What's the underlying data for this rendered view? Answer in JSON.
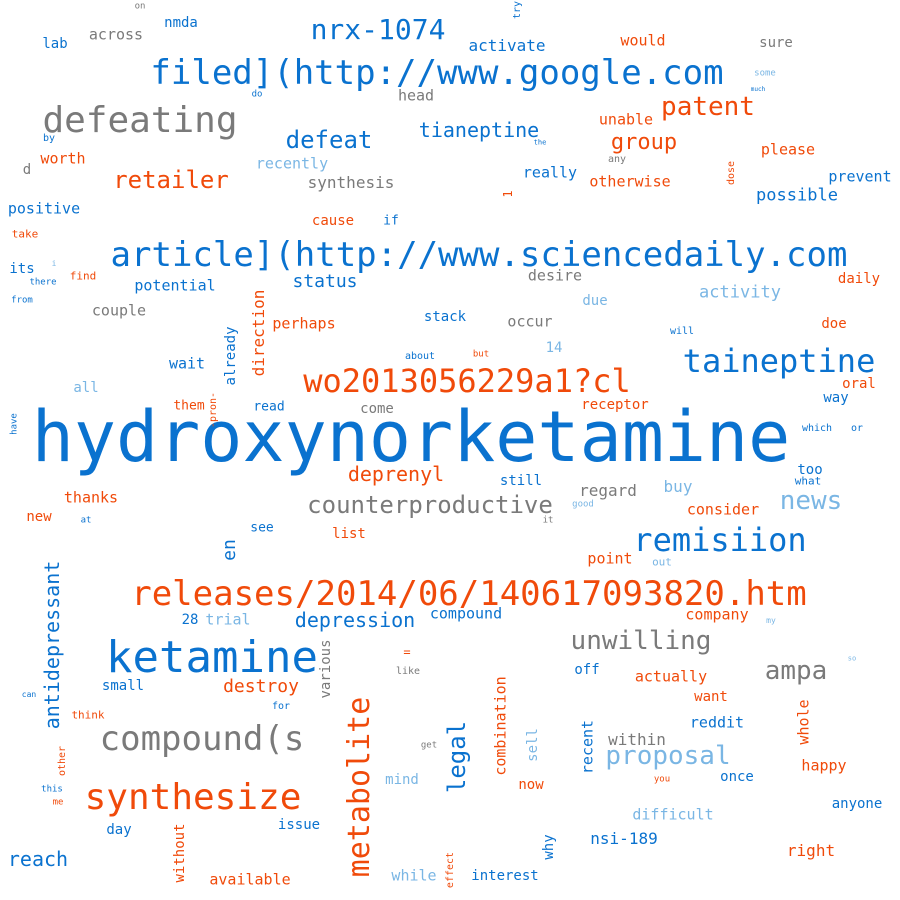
{
  "palette": {
    "blue": "#0a72cf",
    "orange": "#f04a0a",
    "gray": "#7a7a7a",
    "lightblue": "#7ab6e4"
  },
  "words": [
    {
      "text": "hydroxynorketamine",
      "color": "blue"
    },
    {
      "text": "article](http://www.sciencedaily.com",
      "color": "blue"
    },
    {
      "text": "filed](http://www.google.com",
      "color": "blue"
    },
    {
      "text": "releases/2014/06/140617093820.htm",
      "color": "orange"
    },
    {
      "text": "ketamine",
      "color": "blue"
    },
    {
      "text": "wo2013056229a1?cl",
      "color": "orange"
    },
    {
      "text": "defeating",
      "color": "gray"
    },
    {
      "text": "synthesize",
      "color": "orange"
    },
    {
      "text": "compound(s",
      "color": "gray"
    },
    {
      "text": "taineptine",
      "color": "blue"
    },
    {
      "text": "remisiion",
      "color": "blue"
    },
    {
      "text": "metabolite",
      "color": "orange"
    },
    {
      "text": "nrx-1074",
      "color": "blue"
    },
    {
      "text": "counterproductive",
      "color": "gray"
    },
    {
      "text": "proposal",
      "color": "lightblue"
    },
    {
      "text": "unwilling",
      "color": "gray"
    },
    {
      "text": "patent",
      "color": "orange"
    },
    {
      "text": "defeat",
      "color": "blue"
    },
    {
      "text": "retailer",
      "color": "orange"
    },
    {
      "text": "ampa",
      "color": "gray"
    },
    {
      "text": "news",
      "color": "lightblue"
    },
    {
      "text": "group",
      "color": "orange"
    },
    {
      "text": "legal",
      "color": "blue"
    },
    {
      "text": "antidepressant",
      "color": "blue"
    },
    {
      "text": "depression",
      "color": "blue"
    },
    {
      "text": "tianeptine",
      "color": "blue"
    },
    {
      "text": "deprenyl",
      "color": "orange"
    },
    {
      "text": "reach",
      "color": "blue"
    },
    {
      "text": "destroy",
      "color": "orange"
    },
    {
      "text": "status",
      "color": "blue"
    },
    {
      "text": "synthesis",
      "color": "gray"
    },
    {
      "text": "en",
      "color": "blue"
    },
    {
      "text": "activity",
      "color": "lightblue"
    },
    {
      "text": "possible",
      "color": "blue"
    },
    {
      "text": "direction",
      "color": "orange"
    },
    {
      "text": "regard",
      "color": "gray"
    },
    {
      "text": "potential",
      "color": "blue"
    },
    {
      "text": "activate",
      "color": "blue"
    },
    {
      "text": "perhaps",
      "color": "orange"
    },
    {
      "text": "recently",
      "color": "lightblue"
    },
    {
      "text": "couple",
      "color": "gray"
    },
    {
      "text": "across",
      "color": "gray"
    },
    {
      "text": "otherwise",
      "color": "orange"
    },
    {
      "text": "prevent",
      "color": "blue"
    },
    {
      "text": "really",
      "color": "blue"
    },
    {
      "text": "within",
      "color": "gray"
    },
    {
      "text": "nsi-189",
      "color": "blue"
    },
    {
      "text": "combination",
      "color": "orange"
    },
    {
      "text": "thanks",
      "color": "orange"
    },
    {
      "text": "compound",
      "color": "blue"
    },
    {
      "text": "stack",
      "color": "blue"
    },
    {
      "text": "unable",
      "color": "orange"
    },
    {
      "text": "positive",
      "color": "blue"
    },
    {
      "text": "reddit",
      "color": "blue"
    },
    {
      "text": "difficult",
      "color": "lightblue"
    },
    {
      "text": "various",
      "color": "gray"
    },
    {
      "text": "available",
      "color": "orange"
    },
    {
      "text": "company",
      "color": "orange"
    },
    {
      "text": "interest",
      "color": "blue"
    },
    {
      "text": "actually",
      "color": "orange"
    },
    {
      "text": "consider",
      "color": "orange"
    },
    {
      "text": "recent",
      "color": "blue"
    },
    {
      "text": "without",
      "color": "orange"
    },
    {
      "text": "already",
      "color": "blue"
    },
    {
      "text": "please",
      "color": "orange"
    },
    {
      "text": "receptor",
      "color": "orange"
    },
    {
      "text": "anyone",
      "color": "blue"
    },
    {
      "text": "desire",
      "color": "gray"
    },
    {
      "text": "happy",
      "color": "orange"
    },
    {
      "text": "whole",
      "color": "orange"
    },
    {
      "text": "worth",
      "color": "orange"
    },
    {
      "text": "issue",
      "color": "blue"
    },
    {
      "text": "trial",
      "color": "lightblue"
    },
    {
      "text": "small",
      "color": "blue"
    },
    {
      "text": "right",
      "color": "orange"
    },
    {
      "text": "would",
      "color": "orange"
    },
    {
      "text": "daily",
      "color": "orange"
    },
    {
      "text": "point",
      "color": "orange"
    },
    {
      "text": "occur",
      "color": "gray"
    },
    {
      "text": "while",
      "color": "lightblue"
    },
    {
      "text": "wait",
      "color": "blue"
    },
    {
      "text": "oral",
      "color": "orange"
    },
    {
      "text": "buy",
      "color": "lightblue"
    },
    {
      "text": "head",
      "color": "gray"
    },
    {
      "text": "nmda",
      "color": "blue"
    },
    {
      "text": "sure",
      "color": "gray"
    },
    {
      "text": "still",
      "color": "blue"
    },
    {
      "text": "cause",
      "color": "orange"
    },
    {
      "text": "list",
      "color": "orange"
    },
    {
      "text": "lab",
      "color": "blue"
    },
    {
      "text": "once",
      "color": "blue"
    },
    {
      "text": "want",
      "color": "orange"
    },
    {
      "text": "mind",
      "color": "lightblue"
    },
    {
      "text": "sell",
      "color": "lightblue"
    },
    {
      "text": "due",
      "color": "lightblue"
    },
    {
      "text": "day",
      "color": "blue"
    },
    {
      "text": "now",
      "color": "orange"
    },
    {
      "text": "way",
      "color": "blue"
    },
    {
      "text": "too",
      "color": "blue"
    },
    {
      "text": "doe",
      "color": "orange"
    },
    {
      "text": "its",
      "color": "blue"
    },
    {
      "text": "why",
      "color": "blue"
    },
    {
      "text": "new",
      "color": "orange"
    },
    {
      "text": "off",
      "color": "blue"
    },
    {
      "text": "come",
      "color": "gray"
    },
    {
      "text": "read",
      "color": "blue"
    },
    {
      "text": "them",
      "color": "orange"
    },
    {
      "text": "see",
      "color": "blue"
    },
    {
      "text": "28",
      "color": "blue"
    },
    {
      "text": "14",
      "color": "lightblue"
    },
    {
      "text": "all",
      "color": "lightblue"
    },
    {
      "text": "if",
      "color": "blue"
    },
    {
      "text": "d",
      "color": "gray"
    },
    {
      "text": "find",
      "color": "orange"
    },
    {
      "text": "take",
      "color": "orange"
    },
    {
      "text": "think",
      "color": "orange"
    },
    {
      "text": "what",
      "color": "blue"
    },
    {
      "text": "dose",
      "color": "orange"
    },
    {
      "text": "like",
      "color": "gray"
    },
    {
      "text": "out",
      "color": "lightblue"
    },
    {
      "text": "for",
      "color": "blue"
    },
    {
      "text": "=",
      "color": "orange"
    },
    {
      "text": "1",
      "color": "orange"
    },
    {
      "text": "-pron-",
      "color": "orange"
    },
    {
      "text": "try",
      "color": "blue"
    },
    {
      "text": "on",
      "color": "gray"
    },
    {
      "text": "do",
      "color": "blue"
    },
    {
      "text": "some",
      "color": "lightblue"
    },
    {
      "text": "much",
      "color": "blue"
    },
    {
      "text": "any",
      "color": "gray"
    },
    {
      "text": "the",
      "color": "blue"
    },
    {
      "text": "by",
      "color": "blue"
    },
    {
      "text": "there",
      "color": "blue"
    },
    {
      "text": "from",
      "color": "blue"
    },
    {
      "text": "i",
      "color": "lightblue"
    },
    {
      "text": "about",
      "color": "blue"
    },
    {
      "text": "but",
      "color": "orange"
    },
    {
      "text": "will",
      "color": "blue"
    },
    {
      "text": "which",
      "color": "blue"
    },
    {
      "text": "or",
      "color": "blue"
    },
    {
      "text": "have",
      "color": "blue"
    },
    {
      "text": "at",
      "color": "blue"
    },
    {
      "text": "it",
      "color": "gray"
    },
    {
      "text": "good",
      "color": "lightblue"
    },
    {
      "text": "can",
      "color": "blue"
    },
    {
      "text": "other",
      "color": "orange"
    },
    {
      "text": "this",
      "color": "blue"
    },
    {
      "text": "me",
      "color": "orange"
    },
    {
      "text": "get",
      "color": "gray"
    },
    {
      "text": "you",
      "color": "orange"
    },
    {
      "text": "my",
      "color": "lightblue"
    },
    {
      "text": "so",
      "color": "lightblue"
    },
    {
      "text": "effect",
      "color": "orange"
    }
  ]
}
